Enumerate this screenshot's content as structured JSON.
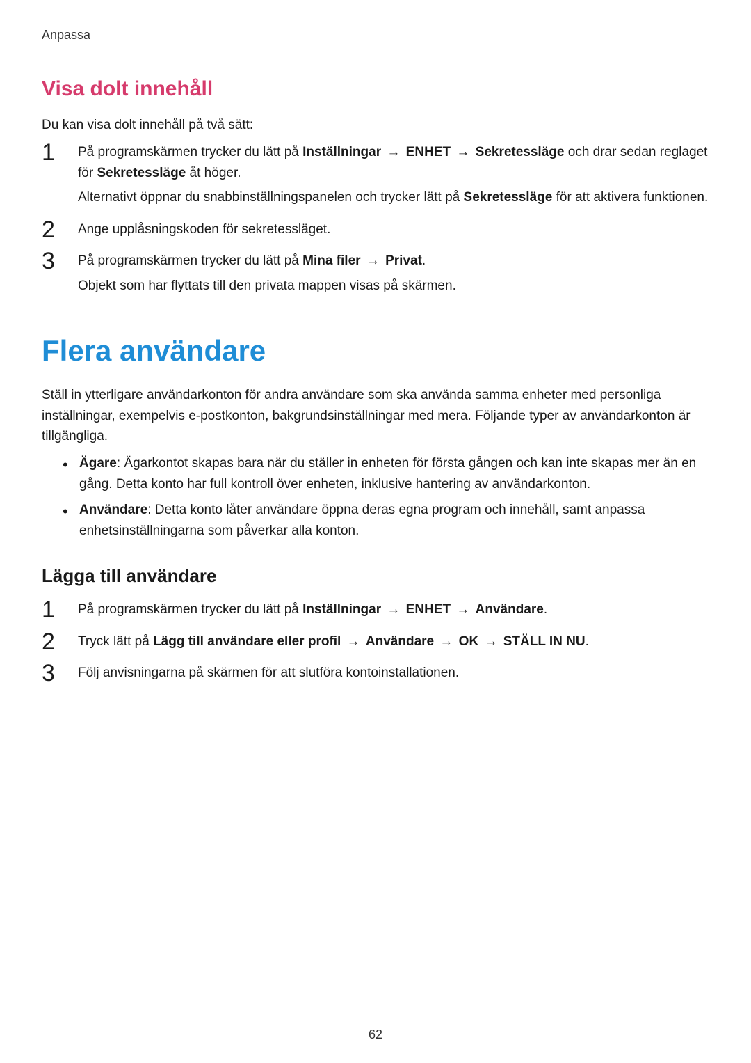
{
  "styles": {
    "h3_color": "#d63b6c",
    "h2_color": "#1f8dd6",
    "body_color": "#1a1a1a",
    "page_bg": "#ffffff",
    "body_fontsize": 19,
    "h2_fontsize": 42,
    "h3_fontsize": 30,
    "h4_fontsize": 26,
    "step_number_fontsize": 34
  },
  "header": {
    "category": "Anpassa"
  },
  "section1": {
    "heading": "Visa dolt innehåll",
    "intro": "Du kan visa dolt innehåll på två sätt:",
    "steps": [
      {
        "line1_pre": "På programskärmen trycker du lätt på ",
        "line1_b1": "Inställningar",
        "line1_b2": "ENHET",
        "line1_b3": "Sekretessläge",
        "line1_post": " och drar sedan reglaget för ",
        "line1_b4": "Sekretessläge",
        "line1_post2": " åt höger.",
        "sub_pre": "Alternativt öppnar du snabbinställningspanelen och trycker lätt på ",
        "sub_b": "Sekretessläge",
        "sub_post": " för att aktivera funktionen."
      },
      {
        "line1": "Ange upplåsningskoden för sekretessläget."
      },
      {
        "line1_pre": "På programskärmen trycker du lätt på ",
        "line1_b1": "Mina filer",
        "line1_b2": "Privat",
        "line1_post": ".",
        "sub": "Objekt som har flyttats till den privata mappen visas på skärmen."
      }
    ]
  },
  "section2": {
    "heading": "Flera användare",
    "intro1": "Ställ in ytterligare användarkonton för andra användare som ska använda samma enheter med personliga inställningar, exempelvis e-postkonton, bakgrundsinställningar med mera. Följande typer av användarkonton är tillgängliga.",
    "bullets": [
      {
        "label": "Ägare",
        "text": ": Ägarkontot skapas bara när du ställer in enheten för första gången och kan inte skapas mer än en gång. Detta konto har full kontroll över enheten, inklusive hantering av användarkonton."
      },
      {
        "label": "Användare",
        "text": ": Detta konto låter användare öppna deras egna program och innehåll, samt anpassa enhetsinställningarna som påverkar alla konton."
      }
    ],
    "h4": "Lägga till användare",
    "steps": [
      {
        "line1_pre": "På programskärmen trycker du lätt på ",
        "line1_b1": "Inställningar",
        "line1_b2": "ENHET",
        "line1_b3": "Användare",
        "line1_post": "."
      },
      {
        "line1_pre": "Tryck lätt på ",
        "line1_b1": "Lägg till användare eller profil",
        "line1_b2": "Användare",
        "line1_b3": "OK",
        "line1_b4": "STÄLL IN NU",
        "line1_post": "."
      },
      {
        "line1": "Följ anvisningarna på skärmen för att slutföra kontoinstallationen."
      }
    ]
  },
  "page_number": "62"
}
